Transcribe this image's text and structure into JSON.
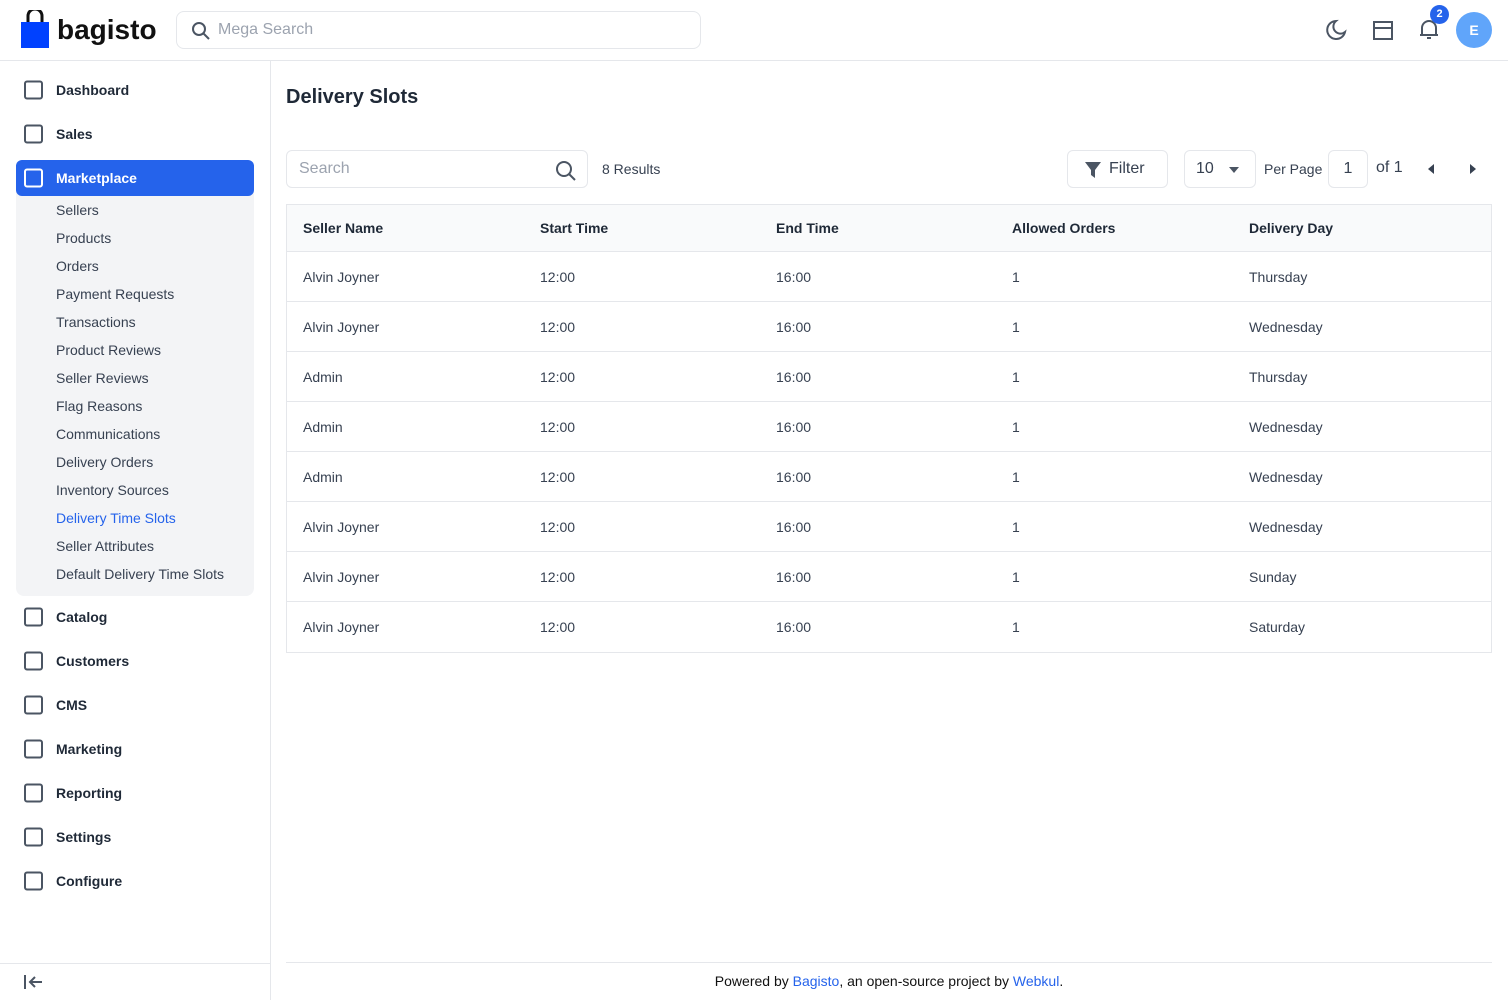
{
  "header": {
    "logo": "bagisto",
    "search_placeholder": "Mega Search",
    "notification_count": 2,
    "avatar": "E"
  },
  "sidebar": {
    "menu": [
      {
        "label": "Dashboard"
      },
      {
        "label": "Sales"
      },
      {
        "label": "Marketplace",
        "children": [
          "Sellers",
          "Products",
          "Orders",
          "Payment Requests",
          "Transactions",
          "Product Reviews",
          "Seller Reviews",
          "Flag Reasons",
          "Communications",
          "Delivery Orders",
          "Inventory Sources",
          "Delivery Time Slots",
          "Seller Attributes",
          "Default Delivery Time Slots"
        ]
      },
      {
        "label": "Catalog"
      },
      {
        "label": "Customers"
      },
      {
        "label": "CMS"
      },
      {
        "label": "Marketing"
      },
      {
        "label": "Reporting"
      },
      {
        "label": "Settings"
      },
      {
        "label": "Configure"
      }
    ]
  },
  "page": {
    "title": "Delivery Slots",
    "search_placeholder": "Search",
    "results": "8 Results",
    "filter": "Filter",
    "per_page_value": 10,
    "per_page": "Per Page",
    "page": 1,
    "of": "of 1"
  },
  "table": {
    "columns": [
      "Seller Name",
      "Start Time",
      "End Time",
      "Allowed Orders",
      "Delivery Day"
    ],
    "rows": [
      [
        "Alvin Joyner",
        "12:00",
        "16:00",
        1,
        "Thursday"
      ],
      [
        "Alvin Joyner",
        "12:00",
        "16:00",
        1,
        "Wednesday"
      ],
      [
        "Admin",
        "12:00",
        "16:00",
        1,
        "Thursday"
      ],
      [
        "Admin",
        "12:00",
        "16:00",
        1,
        "Wednesday"
      ],
      [
        "Admin",
        "12:00",
        "16:00",
        1,
        "Wednesday"
      ],
      [
        "Alvin Joyner",
        "12:00",
        "16:00",
        1,
        "Wednesday"
      ],
      [
        "Alvin Joyner",
        "12:00",
        "16:00",
        1,
        "Sunday"
      ],
      [
        "Alvin Joyner",
        "12:00",
        "16:00",
        1,
        "Saturday"
      ]
    ]
  },
  "footer": {
    "prefix": "Powered by ",
    "bagisto": "Bagisto",
    "middle": ", an open-source project by ",
    "webkul": "Webkul",
    "suffix": "."
  }
}
